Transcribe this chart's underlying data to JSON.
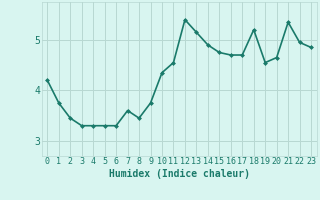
{
  "x": [
    0,
    1,
    2,
    3,
    4,
    5,
    6,
    7,
    8,
    9,
    10,
    11,
    12,
    13,
    14,
    15,
    16,
    17,
    18,
    19,
    20,
    21,
    22,
    23
  ],
  "y": [
    4.2,
    3.75,
    3.45,
    3.3,
    3.3,
    3.3,
    3.3,
    3.6,
    3.45,
    3.75,
    4.35,
    4.55,
    5.4,
    5.15,
    4.9,
    4.75,
    4.7,
    4.7,
    5.2,
    4.55,
    4.65,
    5.35,
    4.95,
    4.85
  ],
  "line_color": "#1a7a6a",
  "marker": "D",
  "markersize": 2.5,
  "linewidth": 1.2,
  "bg_color": "#d8f5f0",
  "grid_color": "#b8d8d2",
  "xlabel": "Humidex (Indice chaleur)",
  "xlabel_fontsize": 7,
  "tick_fontsize": 6,
  "yticks": [
    3,
    4,
    5
  ],
  "ylim": [
    2.7,
    5.75
  ],
  "xlim": [
    -0.5,
    23.5
  ]
}
